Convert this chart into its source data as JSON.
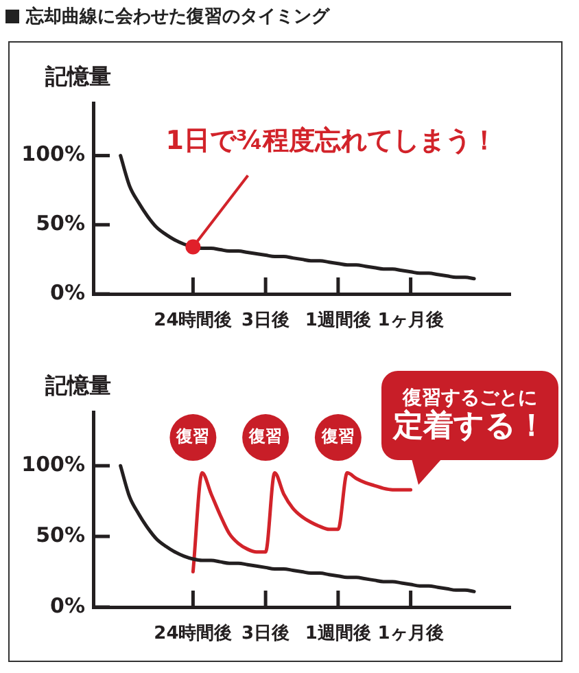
{
  "chart_data": [
    {
      "type": "line",
      "title": "忘却曲線に会わせた復習のタイミング",
      "ylabel": "記憶量",
      "categories": [
        null,
        null,
        null,
        null,
        null,
        null,
        null,
        null,
        null,
        null,
        null,
        "24時間後",
        null,
        null,
        null,
        null,
        null,
        null,
        null,
        "3日後",
        null,
        null,
        null,
        null,
        null,
        null,
        null,
        "1週間後",
        null,
        null,
        null,
        null,
        null,
        null,
        null,
        "1ヶ月後",
        null,
        null,
        null,
        null,
        null,
        null,
        null,
        null,
        null,
        null,
        null
      ],
      "ylim": [
        0,
        138
      ],
      "yticks": [
        {
          "value": 0,
          "label": "0%"
        },
        {
          "value": 50,
          "label": "50%"
        },
        {
          "value": 100,
          "label": "100%"
        }
      ],
      "grid": false,
      "legend": false,
      "marker": "none",
      "series": [
        {
          "color": "#231f20",
          "values": [
            null,
            null,
            null,
            100,
            78,
            66,
            56,
            48,
            43,
            39,
            36,
            34,
            33,
            33,
            32,
            31,
            31,
            30,
            29,
            28,
            27,
            27,
            26,
            25,
            24,
            24,
            23,
            22,
            21,
            21,
            20,
            19,
            18,
            18,
            17,
            16,
            15,
            15,
            14,
            13,
            12,
            12,
            11,
            null,
            null,
            null,
            null
          ]
        }
      ],
      "annotations": [
        {
          "text": "1日で¾程度忘れてしまう！",
          "x": "24時間後",
          "y": 34
        }
      ]
    },
    {
      "type": "line",
      "ylabel": "記憶量",
      "categories": [
        null,
        null,
        null,
        null,
        null,
        null,
        null,
        null,
        null,
        null,
        null,
        "24時間後",
        null,
        null,
        null,
        null,
        null,
        null,
        null,
        "3日後",
        null,
        null,
        null,
        null,
        null,
        null,
        null,
        "1週間後",
        null,
        null,
        null,
        null,
        null,
        null,
        null,
        "1ヶ月後",
        null,
        null,
        null,
        null,
        null,
        null,
        null,
        null,
        null,
        null,
        null
      ],
      "ylim": [
        0,
        138
      ],
      "yticks": [
        {
          "value": 0,
          "label": "0%"
        },
        {
          "value": 50,
          "label": "50%"
        },
        {
          "value": 100,
          "label": "100%"
        }
      ],
      "grid": false,
      "legend": false,
      "marker": "none",
      "series": [
        {
          "color": "#231f20",
          "values": [
            null,
            null,
            null,
            100,
            78,
            66,
            56,
            48,
            43,
            39,
            36,
            34,
            33,
            33,
            32,
            31,
            31,
            30,
            29,
            28,
            27,
            27,
            26,
            25,
            24,
            24,
            23,
            22,
            21,
            21,
            20,
            19,
            18,
            18,
            17,
            16,
            15,
            15,
            14,
            13,
            12,
            12,
            11,
            null,
            null,
            null,
            null
          ]
        },
        {
          "color": "#d2232a",
          "values": [
            null,
            null,
            null,
            null,
            null,
            null,
            null,
            null,
            null,
            null,
            null,
            25,
            95,
            80,
            65,
            52,
            45,
            41,
            39,
            39,
            95,
            80,
            70,
            64,
            60,
            57,
            55,
            55,
            95,
            91,
            88,
            86,
            84,
            83,
            83,
            83,
            null,
            null,
            null,
            null,
            null,
            null,
            null,
            null,
            null,
            null,
            null
          ]
        }
      ],
      "annotations": [
        {
          "text": "復習",
          "x": "24時間後",
          "y": 120
        },
        {
          "text": "復習",
          "x": "3日後",
          "y": 120
        },
        {
          "text": "復習",
          "x": "1週間後",
          "y": 120
        },
        "復習するごとに",
        "定着する！"
      ]
    }
  ]
}
